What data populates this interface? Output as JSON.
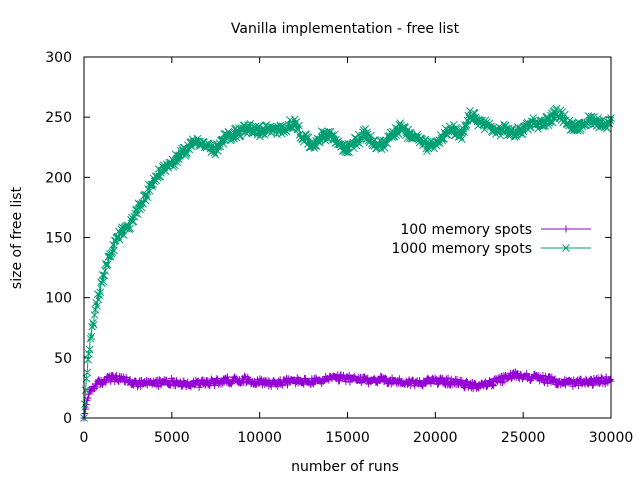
{
  "chart_data": {
    "type": "line",
    "title": "Vanilla implementation - free list",
    "xlabel": "number of runs",
    "ylabel": "size of free list",
    "xlim": [
      0,
      30000
    ],
    "ylim": [
      0,
      300
    ],
    "xticks": [
      0,
      5000,
      10000,
      15000,
      20000,
      25000,
      30000
    ],
    "yticks": [
      0,
      50,
      100,
      150,
      200,
      250,
      300
    ],
    "grid": false,
    "legend_position": "right-center",
    "series": [
      {
        "name": "100 memory spots",
        "color": "#9400d3",
        "marker": "plus",
        "x": [
          0,
          100,
          200,
          400,
          700,
          1000,
          1500,
          2000,
          2500,
          3000,
          4000,
          5000,
          6000,
          7000,
          8000,
          9000,
          10000,
          11000,
          12000,
          13000,
          14000,
          15000,
          16000,
          17000,
          18000,
          19000,
          20000,
          21000,
          22000,
          23000,
          24000,
          24500,
          25000,
          26000,
          27000,
          28000,
          29000,
          30000
        ],
        "y": [
          0,
          8,
          16,
          24,
          28,
          30,
          33,
          32,
          31,
          28,
          29,
          30,
          28,
          29,
          31,
          32,
          30,
          29,
          31,
          30,
          33,
          33,
          31,
          32,
          30,
          29,
          31,
          30,
          27,
          28,
          33,
          36,
          35,
          33,
          30,
          29,
          30,
          32
        ]
      },
      {
        "name": "1000 memory spots",
        "color": "#009e73",
        "marker": "cross",
        "x": [
          0,
          100,
          200,
          400,
          600,
          800,
          1000,
          1200,
          1500,
          1800,
          2000,
          2500,
          3000,
          3500,
          4000,
          4500,
          5000,
          5500,
          6000,
          6500,
          7000,
          7500,
          8000,
          8500,
          9000,
          9500,
          10000,
          10500,
          11000,
          11500,
          12000,
          12500,
          13000,
          13500,
          14000,
          14500,
          15000,
          15500,
          16000,
          16500,
          17000,
          17500,
          18000,
          18500,
          19000,
          19500,
          20000,
          20500,
          21000,
          21500,
          22000,
          22500,
          23000,
          23500,
          24000,
          24500,
          25000,
          25500,
          26000,
          26500,
          27000,
          27500,
          28000,
          28500,
          29000,
          29500,
          30000
        ],
        "y": [
          0,
          25,
          45,
          70,
          85,
          100,
          112,
          122,
          135,
          145,
          152,
          158,
          172,
          185,
          198,
          207,
          212,
          218,
          226,
          231,
          226,
          222,
          232,
          236,
          239,
          241,
          238,
          240,
          238,
          242,
          245,
          233,
          226,
          234,
          236,
          228,
          223,
          230,
          236,
          228,
          226,
          236,
          241,
          235,
          233,
          226,
          228,
          236,
          240,
          233,
          252,
          246,
          243,
          238,
          240,
          236,
          240,
          246,
          244,
          248,
          254,
          246,
          240,
          246,
          248,
          244,
          246
        ]
      }
    ]
  }
}
